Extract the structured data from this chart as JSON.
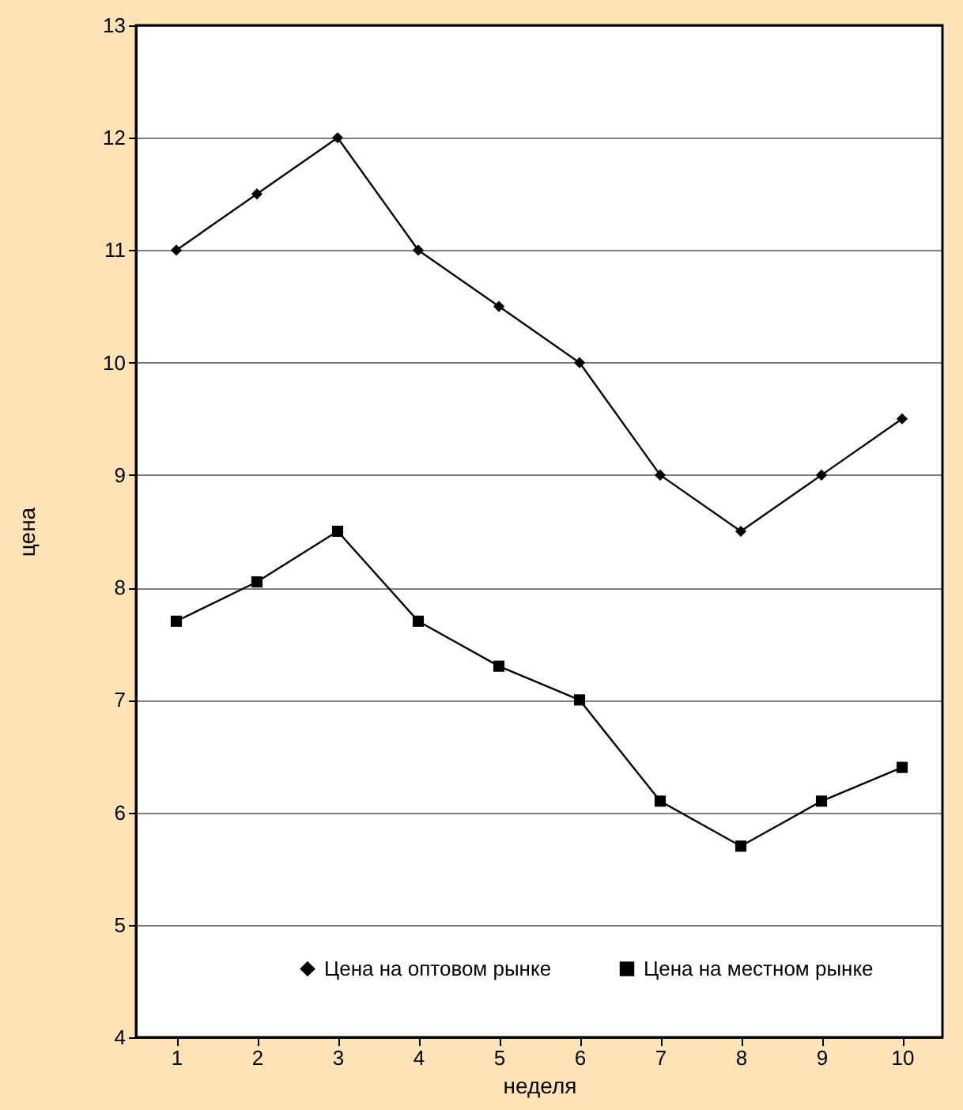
{
  "chart_data": {
    "type": "line",
    "xlabel": "неделя",
    "ylabel": "цена",
    "categories": [
      "1",
      "2",
      "3",
      "4",
      "5",
      "6",
      "7",
      "8",
      "9",
      "10"
    ],
    "series": [
      {
        "name": "Цена на оптовом рынке",
        "color": "#000000",
        "marker": "diamond",
        "values": [
          11,
          11.5,
          12,
          11,
          10.5,
          10,
          9,
          8.5,
          9,
          9.5
        ]
      },
      {
        "name": "Цена на местном рынке",
        "color": "#000000",
        "marker": "square",
        "values": [
          7.7,
          8.05,
          8.5,
          7.7,
          7.3,
          7,
          6.1,
          5.7,
          6.1,
          6.4
        ]
      }
    ],
    "ylim": [
      4,
      13
    ],
    "yticks": [
      4,
      5,
      6,
      7,
      8,
      9,
      10,
      11,
      12,
      13
    ],
    "grid": "y",
    "legend": "bottom"
  }
}
